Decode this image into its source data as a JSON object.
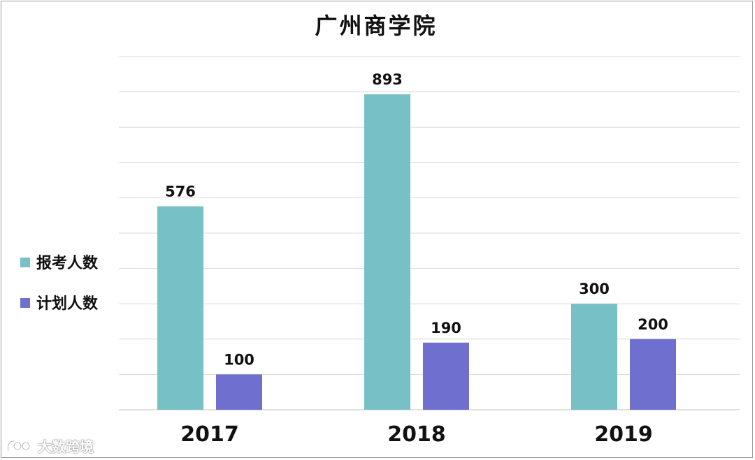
{
  "chart_data": {
    "type": "bar",
    "title": "广州商学院",
    "categories": [
      "2017",
      "2018",
      "2019"
    ],
    "series": [
      {
        "name": "报考人数",
        "color": "#76c0c6",
        "values": [
          576,
          893,
          300
        ]
      },
      {
        "name": "计划人数",
        "color": "#6f6fd0",
        "values": [
          100,
          190,
          200
        ]
      }
    ],
    "ylim": [
      0,
      1000
    ],
    "grid": true,
    "legend": "left"
  },
  "watermark": {
    "text": "大数跨境"
  }
}
